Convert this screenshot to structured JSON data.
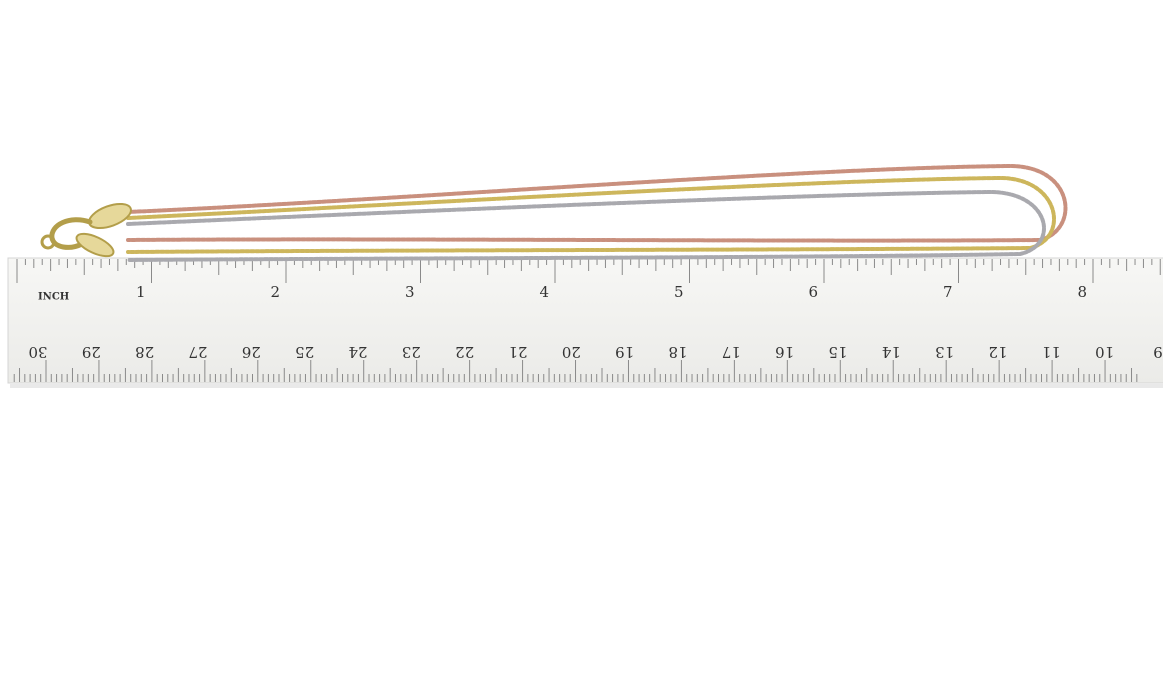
{
  "ruler": {
    "unit_label": "INCH",
    "inch_labels": [
      "1",
      "2",
      "3",
      "4",
      "5",
      "6",
      "7",
      "8"
    ],
    "cm_labels": [
      "30",
      "29",
      "28",
      "27",
      "26",
      "25",
      "24",
      "23",
      "22",
      "21",
      "20",
      "19",
      "18",
      "17",
      "16",
      "15",
      "14",
      "13",
      "12",
      "11",
      "10",
      "9"
    ]
  }
}
